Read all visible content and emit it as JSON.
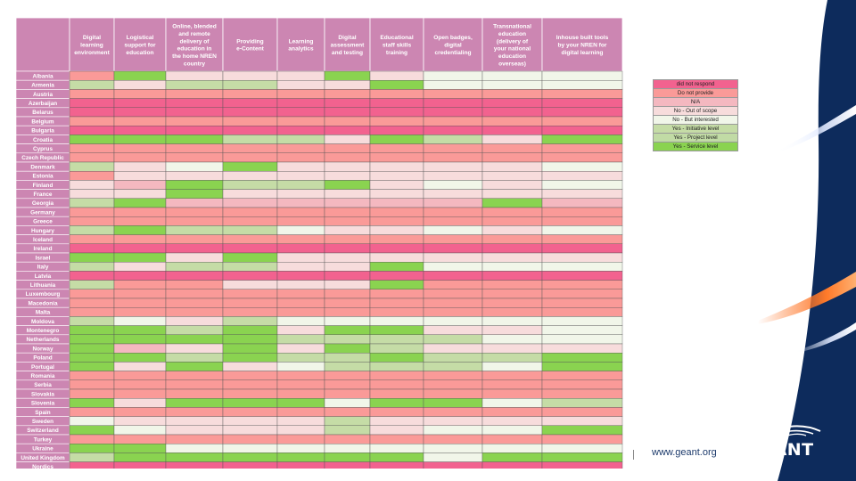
{
  "colors": {
    "did not respond": "#f2628f",
    "Do not provide": "#fa9a98",
    "N/A": "#f4b8c0",
    "No - Out of scope": "#f7dcdc",
    "No - But interested": "#f1f6e9",
    "Yes - Initiative level": "#c5dca6",
    "Yes - Project level": "#c1dba5",
    "Yes - Service level": "#8ad350",
    "header_bg": "#cc86b2",
    "deco_navy": "#0d2b5c"
  },
  "legend": {
    "items": [
      "did not respond",
      "Do not provide",
      "N/A",
      "No - Out of scope",
      "No - But interested",
      "Yes - Initiative level",
      "Yes - Project level",
      "Yes - Service level"
    ]
  },
  "chart_data": {
    "type": "heatmap",
    "columns": [
      "Digital learning environment",
      "Logistical support for education",
      "Online, blended and remote delivery of education in the home NREN country",
      "Providing e-Content",
      "Learning analytics",
      "Digital assessment and testing",
      "Educational staff skills training",
      "Open badges, digital credentialing",
      "Transnational education (delivery of your national education overseas)",
      "Inhouse built tools by your NREN for digital learning"
    ],
    "rows": [
      "Albania",
      "Armenia",
      "Austria",
      "Azerbaijan",
      "Belarus",
      "Belgium",
      "Bulgaria",
      "Croatia",
      "Cyprus",
      "Czech Republic",
      "Denmark",
      "Estonia",
      "Finland",
      "France",
      "Georgia",
      "Germany",
      "Greece",
      "Hungary",
      "Iceland",
      "Ireland",
      "Israel",
      "Italy",
      "Latvia",
      "Lithuania",
      "Luxembourg",
      "Macedonia",
      "Malta",
      "Moldova",
      "Montenegro",
      "Netherlands",
      "Norway",
      "Poland",
      "Portugal",
      "Romania",
      "Serbia",
      "Slovakia",
      "Slovenia",
      "Spain",
      "Sweden",
      "Switzerland",
      "Turkey",
      "Ukraine",
      "United Kingdom",
      "Nordics"
    ],
    "values": [
      [
        "Do not provide",
        "Yes - Service level",
        "No - Out of scope",
        "No - Out of scope",
        "No - Out of scope",
        "Yes - Service level",
        "No - Out of scope",
        "No - But interested",
        "No - But interested",
        "No - But interested"
      ],
      [
        "Yes - Initiative level",
        "No - Out of scope",
        "Yes - Initiative level",
        "Yes - Initiative level",
        "No - Out of scope",
        "No - Out of scope",
        "Yes - Service level",
        "No - But interested",
        "No - But interested",
        "No - But interested"
      ],
      [
        "Do not provide",
        "Do not provide",
        "Do not provide",
        "Do not provide",
        "Do not provide",
        "Do not provide",
        "Do not provide",
        "Do not provide",
        "Do not provide",
        "Do not provide"
      ],
      [
        "did not respond",
        "did not respond",
        "did not respond",
        "did not respond",
        "did not respond",
        "did not respond",
        "did not respond",
        "did not respond",
        "did not respond",
        "did not respond"
      ],
      [
        "did not respond",
        "did not respond",
        "did not respond",
        "did not respond",
        "did not respond",
        "did not respond",
        "did not respond",
        "did not respond",
        "did not respond",
        "did not respond"
      ],
      [
        "Do not provide",
        "Do not provide",
        "Do not provide",
        "Do not provide",
        "Do not provide",
        "Do not provide",
        "Do not provide",
        "Do not provide",
        "Do not provide",
        "Do not provide"
      ],
      [
        "did not respond",
        "did not respond",
        "did not respond",
        "did not respond",
        "did not respond",
        "did not respond",
        "did not respond",
        "did not respond",
        "did not respond",
        "did not respond"
      ],
      [
        "Yes - Service level",
        "Yes - Service level",
        "Yes - Service level",
        "Yes - Initiative level",
        "Yes - Initiative level",
        "No - Out of scope",
        "Yes - Service level",
        "Yes - Initiative level",
        "No - Out of scope",
        "Yes - Service level"
      ],
      [
        "Do not provide",
        "Do not provide",
        "Do not provide",
        "Do not provide",
        "Do not provide",
        "Do not provide",
        "Do not provide",
        "Do not provide",
        "Do not provide",
        "Do not provide"
      ],
      [
        "Do not provide",
        "Do not provide",
        "Do not provide",
        "Do not provide",
        "Do not provide",
        "Do not provide",
        "Do not provide",
        "Do not provide",
        "Do not provide",
        "Do not provide"
      ],
      [
        "Yes - Initiative level",
        "No - Out of scope",
        "No - But interested",
        "Yes - Service level",
        "No - Out of scope",
        "No - Out of scope",
        "No - Out of scope",
        "No - Out of scope",
        "No - Out of scope",
        "No - But interested"
      ],
      [
        "Do not provide",
        "No - Out of scope",
        "No - Out of scope",
        "No - Out of scope",
        "No - Out of scope",
        "No - Out of scope",
        "No - Out of scope",
        "No - Out of scope",
        "No - Out of scope",
        "No - Out of scope"
      ],
      [
        "No - Out of scope",
        "N/A",
        "Yes - Service level",
        "Yes - Initiative level",
        "Yes - Initiative level",
        "Yes - Service level",
        "No - Out of scope",
        "No - But interested",
        "No - Out of scope",
        "No - But interested"
      ],
      [
        "No - Out of scope",
        "No - Out of scope",
        "Yes - Service level",
        "No - Out of scope",
        "No - Out of scope",
        "No - Out of scope",
        "No - Out of scope",
        "No - Out of scope",
        "No - Out of scope",
        "No - Out of scope"
      ],
      [
        "Yes - Initiative level",
        "Yes - Service level",
        "N/A",
        "N/A",
        "N/A",
        "N/A",
        "N/A",
        "N/A",
        "Yes - Service level",
        "N/A"
      ],
      [
        "Do not provide",
        "Do not provide",
        "Do not provide",
        "Do not provide",
        "Do not provide",
        "Do not provide",
        "Do not provide",
        "Do not provide",
        "Do not provide",
        "Do not provide"
      ],
      [
        "Do not provide",
        "Do not provide",
        "Do not provide",
        "Do not provide",
        "Do not provide",
        "Do not provide",
        "Do not provide",
        "Do not provide",
        "Do not provide",
        "Do not provide"
      ],
      [
        "Yes - Initiative level",
        "Yes - Service level",
        "Yes - Initiative level",
        "Yes - Initiative level",
        "No - But interested",
        "No - Out of scope",
        "No - Out of scope",
        "No - But interested",
        "No - Out of scope",
        "No - But interested"
      ],
      [
        "Do not provide",
        "Do not provide",
        "Do not provide",
        "Do not provide",
        "Do not provide",
        "Do not provide",
        "Do not provide",
        "Do not provide",
        "Do not provide",
        "Do not provide"
      ],
      [
        "did not respond",
        "did not respond",
        "did not respond",
        "did not respond",
        "did not respond",
        "did not respond",
        "did not respond",
        "did not respond",
        "did not respond",
        "did not respond"
      ],
      [
        "Yes - Service level",
        "Yes - Service level",
        "No - Out of scope",
        "Yes - Service level",
        "No - Out of scope",
        "No - Out of scope",
        "No - Out of scope",
        "No - Out of scope",
        "No - Out of scope",
        "No - Out of scope"
      ],
      [
        "Yes - Initiative level",
        "No - Out of scope",
        "Yes - Initiative level",
        "Yes - Initiative level",
        "No - Out of scope",
        "No - Out of scope",
        "Yes - Service level",
        "No - But interested",
        "No - But interested",
        "No - But interested"
      ],
      [
        "did not respond",
        "did not respond",
        "did not respond",
        "did not respond",
        "did not respond",
        "did not respond",
        "did not respond",
        "did not respond",
        "did not respond",
        "did not respond"
      ],
      [
        "Yes - Initiative level",
        "Do not provide",
        "Do not provide",
        "No - Out of scope",
        "No - Out of scope",
        "No - Out of scope",
        "Yes - Service level",
        "Do not provide",
        "Do not provide",
        "Do not provide"
      ],
      [
        "Do not provide",
        "Do not provide",
        "Do not provide",
        "Do not provide",
        "Do not provide",
        "Do not provide",
        "Do not provide",
        "Do not provide",
        "Do not provide",
        "Do not provide"
      ],
      [
        "Do not provide",
        "Do not provide",
        "Do not provide",
        "Do not provide",
        "Do not provide",
        "Do not provide",
        "Do not provide",
        "Do not provide",
        "Do not provide",
        "Do not provide"
      ],
      [
        "Do not provide",
        "Do not provide",
        "Do not provide",
        "Do not provide",
        "Do not provide",
        "Do not provide",
        "Do not provide",
        "Do not provide",
        "Do not provide",
        "Do not provide"
      ],
      [
        "Yes - Initiative level",
        "No - But interested",
        "No - Out of scope",
        "Yes - Initiative level",
        "No - But interested",
        "No - But interested",
        "No - But interested",
        "No - But interested",
        "No - But interested",
        "No - But interested"
      ],
      [
        "Yes - Service level",
        "Yes - Service level",
        "Yes - Initiative level",
        "Yes - Service level",
        "No - Out of scope",
        "Yes - Service level",
        "Yes - Service level",
        "No - Out of scope",
        "No - Out of scope",
        "No - But interested"
      ],
      [
        "Yes - Service level",
        "Yes - Service level",
        "Yes - Service level",
        "Yes - Service level",
        "Yes - Initiative level",
        "Yes - Initiative level",
        "Yes - Initiative level",
        "Yes - Initiative level",
        "No - But interested",
        "No - But interested"
      ],
      [
        "Yes - Service level",
        "N/A",
        "No - Out of scope",
        "Yes - Service level",
        "No - Out of scope",
        "Yes - Service level",
        "Yes - Initiative level",
        "No - Out of scope",
        "No - Out of scope",
        "No - Out of scope"
      ],
      [
        "Yes - Service level",
        "Yes - Service level",
        "Yes - Initiative level",
        "Yes - Service level",
        "Yes - Initiative level",
        "Yes - Initiative level",
        "Yes - Service level",
        "Yes - Initiative level",
        "Yes - Initiative level",
        "Yes - Service level"
      ],
      [
        "Yes - Service level",
        "No - Out of scope",
        "Yes - Service level",
        "No - Out of scope",
        "No - But interested",
        "Yes - Initiative level",
        "Yes - Initiative level",
        "Yes - Initiative level",
        "No - But interested",
        "Yes - Service level"
      ],
      [
        "Do not provide",
        "Do not provide",
        "Do not provide",
        "Do not provide",
        "Do not provide",
        "Do not provide",
        "Do not provide",
        "Do not provide",
        "Do not provide",
        "Do not provide"
      ],
      [
        "Do not provide",
        "Do not provide",
        "Do not provide",
        "Do not provide",
        "Do not provide",
        "Do not provide",
        "Do not provide",
        "Do not provide",
        "Do not provide",
        "Do not provide"
      ],
      [
        "Do not provide",
        "Do not provide",
        "Do not provide",
        "Do not provide",
        "Do not provide",
        "Do not provide",
        "Do not provide",
        "Do not provide",
        "Do not provide",
        "Do not provide"
      ],
      [
        "Yes - Service level",
        "No - Out of scope",
        "Yes - Service level",
        "Yes - Service level",
        "Yes - Service level",
        "No - But interested",
        "Yes - Service level",
        "Yes - Service level",
        "No - But interested",
        "Yes - Initiative level"
      ],
      [
        "Do not provide",
        "Do not provide",
        "Do not provide",
        "Do not provide",
        "Do not provide",
        "Do not provide",
        "Do not provide",
        "Do not provide",
        "Do not provide",
        "Do not provide"
      ],
      [
        "No - But interested",
        "No - Out of scope",
        "No - Out of scope",
        "No - Out of scope",
        "No - Out of scope",
        "Yes - Initiative level",
        "No - Out of scope",
        "No - Out of scope",
        "No - Out of scope",
        "No - Out of scope"
      ],
      [
        "Yes - Service level",
        "No - But interested",
        "No - Out of scope",
        "No - Out of scope",
        "No - Out of scope",
        "Yes - Initiative level",
        "No - Out of scope",
        "No - But interested",
        "No - But interested",
        "Yes - Service level"
      ],
      [
        "Do not provide",
        "Do not provide",
        "Do not provide",
        "Do not provide",
        "Do not provide",
        "Do not provide",
        "Do not provide",
        "Do not provide",
        "Do not provide",
        "Do not provide"
      ],
      [
        "Yes - Service level",
        "Yes - Service level",
        "No - But interested",
        "No - But interested",
        "No - But interested",
        "No - But interested",
        "No - But interested",
        "No - But interested",
        "No - But interested",
        "No - But interested"
      ],
      [
        "Yes - Initiative level",
        "Yes - Service level",
        "Yes - Service level",
        "Yes - Service level",
        "Yes - Service level",
        "Yes - Service level",
        "Yes - Service level",
        "No - But interested",
        "Yes - Service level",
        "Yes - Service level"
      ],
      [
        "did not respond",
        "did not respond",
        "did not respond",
        "did not respond",
        "did not respond",
        "did not respond",
        "did not respond",
        "did not respond",
        "did not respond",
        "did not respond"
      ]
    ]
  },
  "footer": {
    "url": "www.geant.org"
  },
  "logo": {
    "text": "GÉANT"
  }
}
